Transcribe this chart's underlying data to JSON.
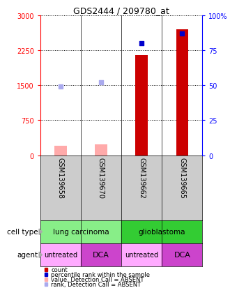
{
  "title": "GDS2444 / 209780_at",
  "samples": [
    "GSM139658",
    "GSM139670",
    "GSM139662",
    "GSM139665"
  ],
  "bar_values": [
    null,
    null,
    2150,
    2700
  ],
  "absent_bar_values": [
    200,
    230,
    null,
    null
  ],
  "absent_bar_color": "#ffaaaa",
  "bar_color": "#cc0000",
  "rank_values": [
    null,
    null,
    80,
    87
  ],
  "rank_absent_values": [
    49,
    52,
    null,
    null
  ],
  "rank_dot_color": "#0000cc",
  "rank_absent_dot_color": "#aaaaee",
  "ylim_left": [
    0,
    3000
  ],
  "ylim_right": [
    0,
    100
  ],
  "yticks_left": [
    0,
    750,
    1500,
    2250,
    3000
  ],
  "ytick_labels_left": [
    "0",
    "750",
    "1500",
    "2250",
    "3000"
  ],
  "yticks_right": [
    0,
    25,
    50,
    75,
    100
  ],
  "ytick_labels_right": [
    "0",
    "25",
    "50",
    "75",
    "100%"
  ],
  "cell_type_groups": [
    {
      "label": "lung carcinoma",
      "start": 0,
      "end": 2,
      "color": "#88ee88"
    },
    {
      "label": "glioblastoma",
      "start": 2,
      "end": 4,
      "color": "#33cc33"
    }
  ],
  "agent_groups": [
    {
      "label": "untreated",
      "start": 0,
      "end": 1,
      "color": "#ffaaff"
    },
    {
      "label": "DCA",
      "start": 1,
      "end": 2,
      "color": "#cc44cc"
    },
    {
      "label": "untreated",
      "start": 2,
      "end": 3,
      "color": "#ffaaff"
    },
    {
      "label": "DCA",
      "start": 3,
      "end": 4,
      "color": "#cc44cc"
    }
  ],
  "legend_items": [
    {
      "color": "#cc0000",
      "label": "count"
    },
    {
      "color": "#0000cc",
      "label": "percentile rank within the sample"
    },
    {
      "color": "#ffaaaa",
      "label": "value, Detection Call = ABSENT"
    },
    {
      "color": "#aaaaee",
      "label": "rank, Detection Call = ABSENT"
    }
  ],
  "background_color": "#ffffff",
  "sample_bg": "#cccccc",
  "bar_width": 0.3
}
